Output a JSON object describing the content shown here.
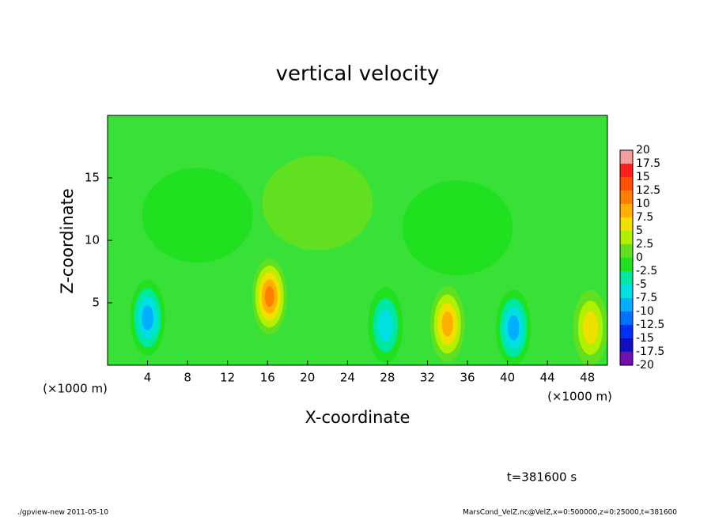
{
  "chart_data": {
    "type": "contour",
    "title": "vertical velocity",
    "x_label": "X-coordinate",
    "y_label": "Z-coordinate",
    "x_unit": "(×1000 m)",
    "time_label": "t=381600 s",
    "footer_left": "./gpview-new   2011-05-10",
    "footer_right": "MarsCond_VelZ.nc@VelZ,x=0:500000,z=0:25000,t=381600",
    "xlim": [
      0,
      50
    ],
    "ylim": [
      0,
      20
    ],
    "xticks": [
      4,
      8,
      12,
      16,
      20,
      24,
      28,
      32,
      36,
      40,
      44,
      48
    ],
    "yticks": [
      5,
      10,
      15
    ],
    "levels": [
      20,
      17.5,
      15,
      12.5,
      10,
      7.5,
      5,
      2.5,
      0,
      -2.5,
      -5,
      -7.5,
      -10,
      -12.5,
      -15,
      -17.5,
      -20
    ],
    "colors": [
      "#f4a0a0",
      "#ff2020",
      "#ff5000",
      "#ff8000",
      "#ffb000",
      "#f0e000",
      "#b0f000",
      "#60e020",
      "#20e020",
      "#00e8a0",
      "#00e0e0",
      "#00b0ff",
      "#0070ff",
      "#0030f0",
      "#1010c0",
      "#7010b0"
    ],
    "cells": [
      {
        "x": 4,
        "y": 3.8,
        "value": -11
      },
      {
        "x": 16.2,
        "y": 5.5,
        "value": 14
      },
      {
        "x": 27.8,
        "y": 3.2,
        "value": -8
      },
      {
        "x": 34,
        "y": 3.3,
        "value": 10
      },
      {
        "x": 40.6,
        "y": 3,
        "value": -12
      },
      {
        "x": 48.3,
        "y": 3,
        "value": 9
      },
      {
        "x": 9,
        "y": 12,
        "value": -3
      },
      {
        "x": 35,
        "y": 11,
        "value": -3
      },
      {
        "x": 21,
        "y": 13,
        "value": 4
      }
    ]
  }
}
